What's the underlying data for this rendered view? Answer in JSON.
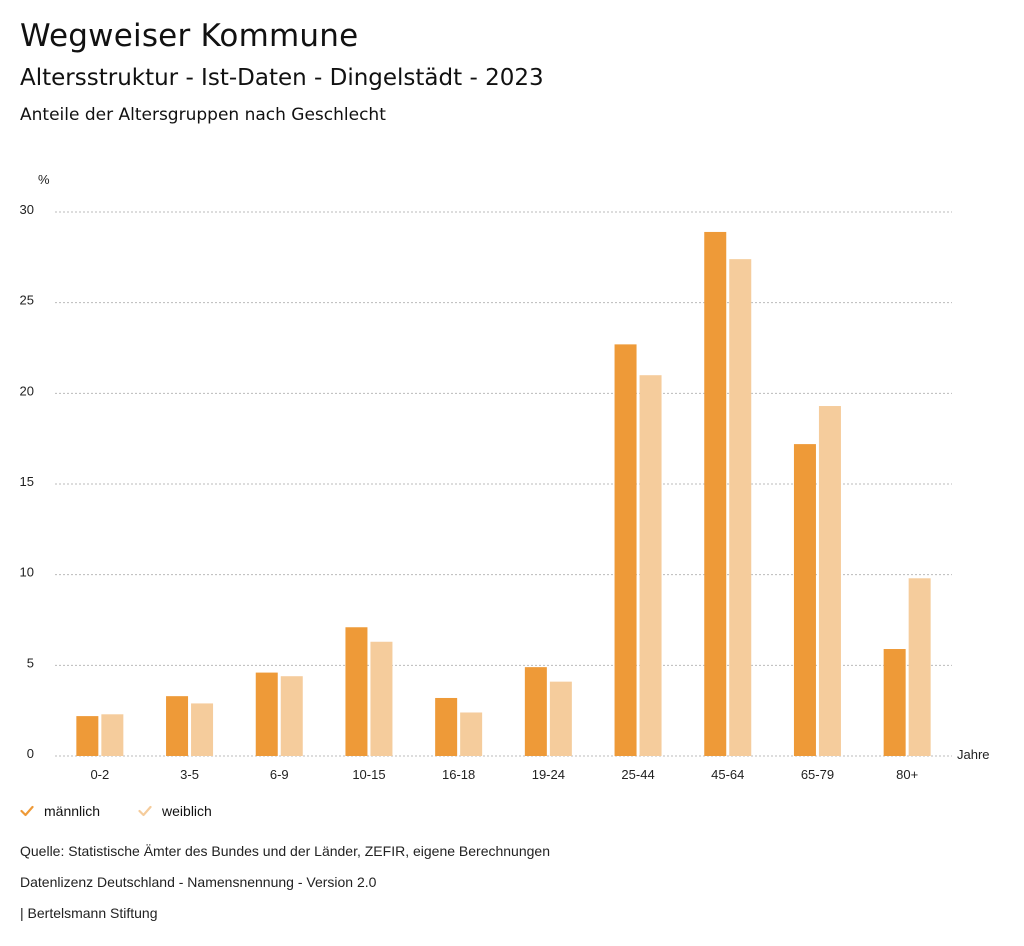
{
  "header": {
    "title": "Wegweiser Kommune",
    "subtitle": "Altersstruktur - Ist-Daten - Dingelstädt - 2023",
    "caption": "Anteile der Altersgruppen nach Geschlecht"
  },
  "colors": {
    "male": "#EE9A38",
    "female": "#F5CC9C",
    "grid": "#BBBBBB"
  },
  "chart_data": {
    "type": "bar",
    "title": "Anteile der Altersgruppen nach Geschlecht",
    "ylabel": "%",
    "xlabel": "Jahre",
    "ylim": [
      0,
      30
    ],
    "yticks": [
      0,
      5,
      10,
      15,
      20,
      25,
      30
    ],
    "categories": [
      "0-2",
      "3-5",
      "6-9",
      "10-15",
      "16-18",
      "19-24",
      "25-44",
      "45-64",
      "65-79",
      "80+"
    ],
    "series": [
      {
        "name": "männlich",
        "values": [
          2.2,
          3.3,
          4.6,
          7.1,
          3.2,
          4.9,
          22.7,
          28.9,
          17.2,
          5.9
        ]
      },
      {
        "name": "weiblich",
        "values": [
          2.3,
          2.9,
          4.4,
          6.3,
          2.4,
          4.1,
          21.0,
          27.4,
          19.3,
          9.8
        ]
      }
    ],
    "grid": true,
    "legend_position": "bottom-left"
  },
  "footer": {
    "source": "Quelle: Statistische Ämter des Bundes und der Länder, ZEFIR, eigene Berechnungen",
    "license": "Datenlizenz Deutschland - Namensnennung - Version 2.0",
    "credit": "| Bertelsmann Stiftung"
  }
}
